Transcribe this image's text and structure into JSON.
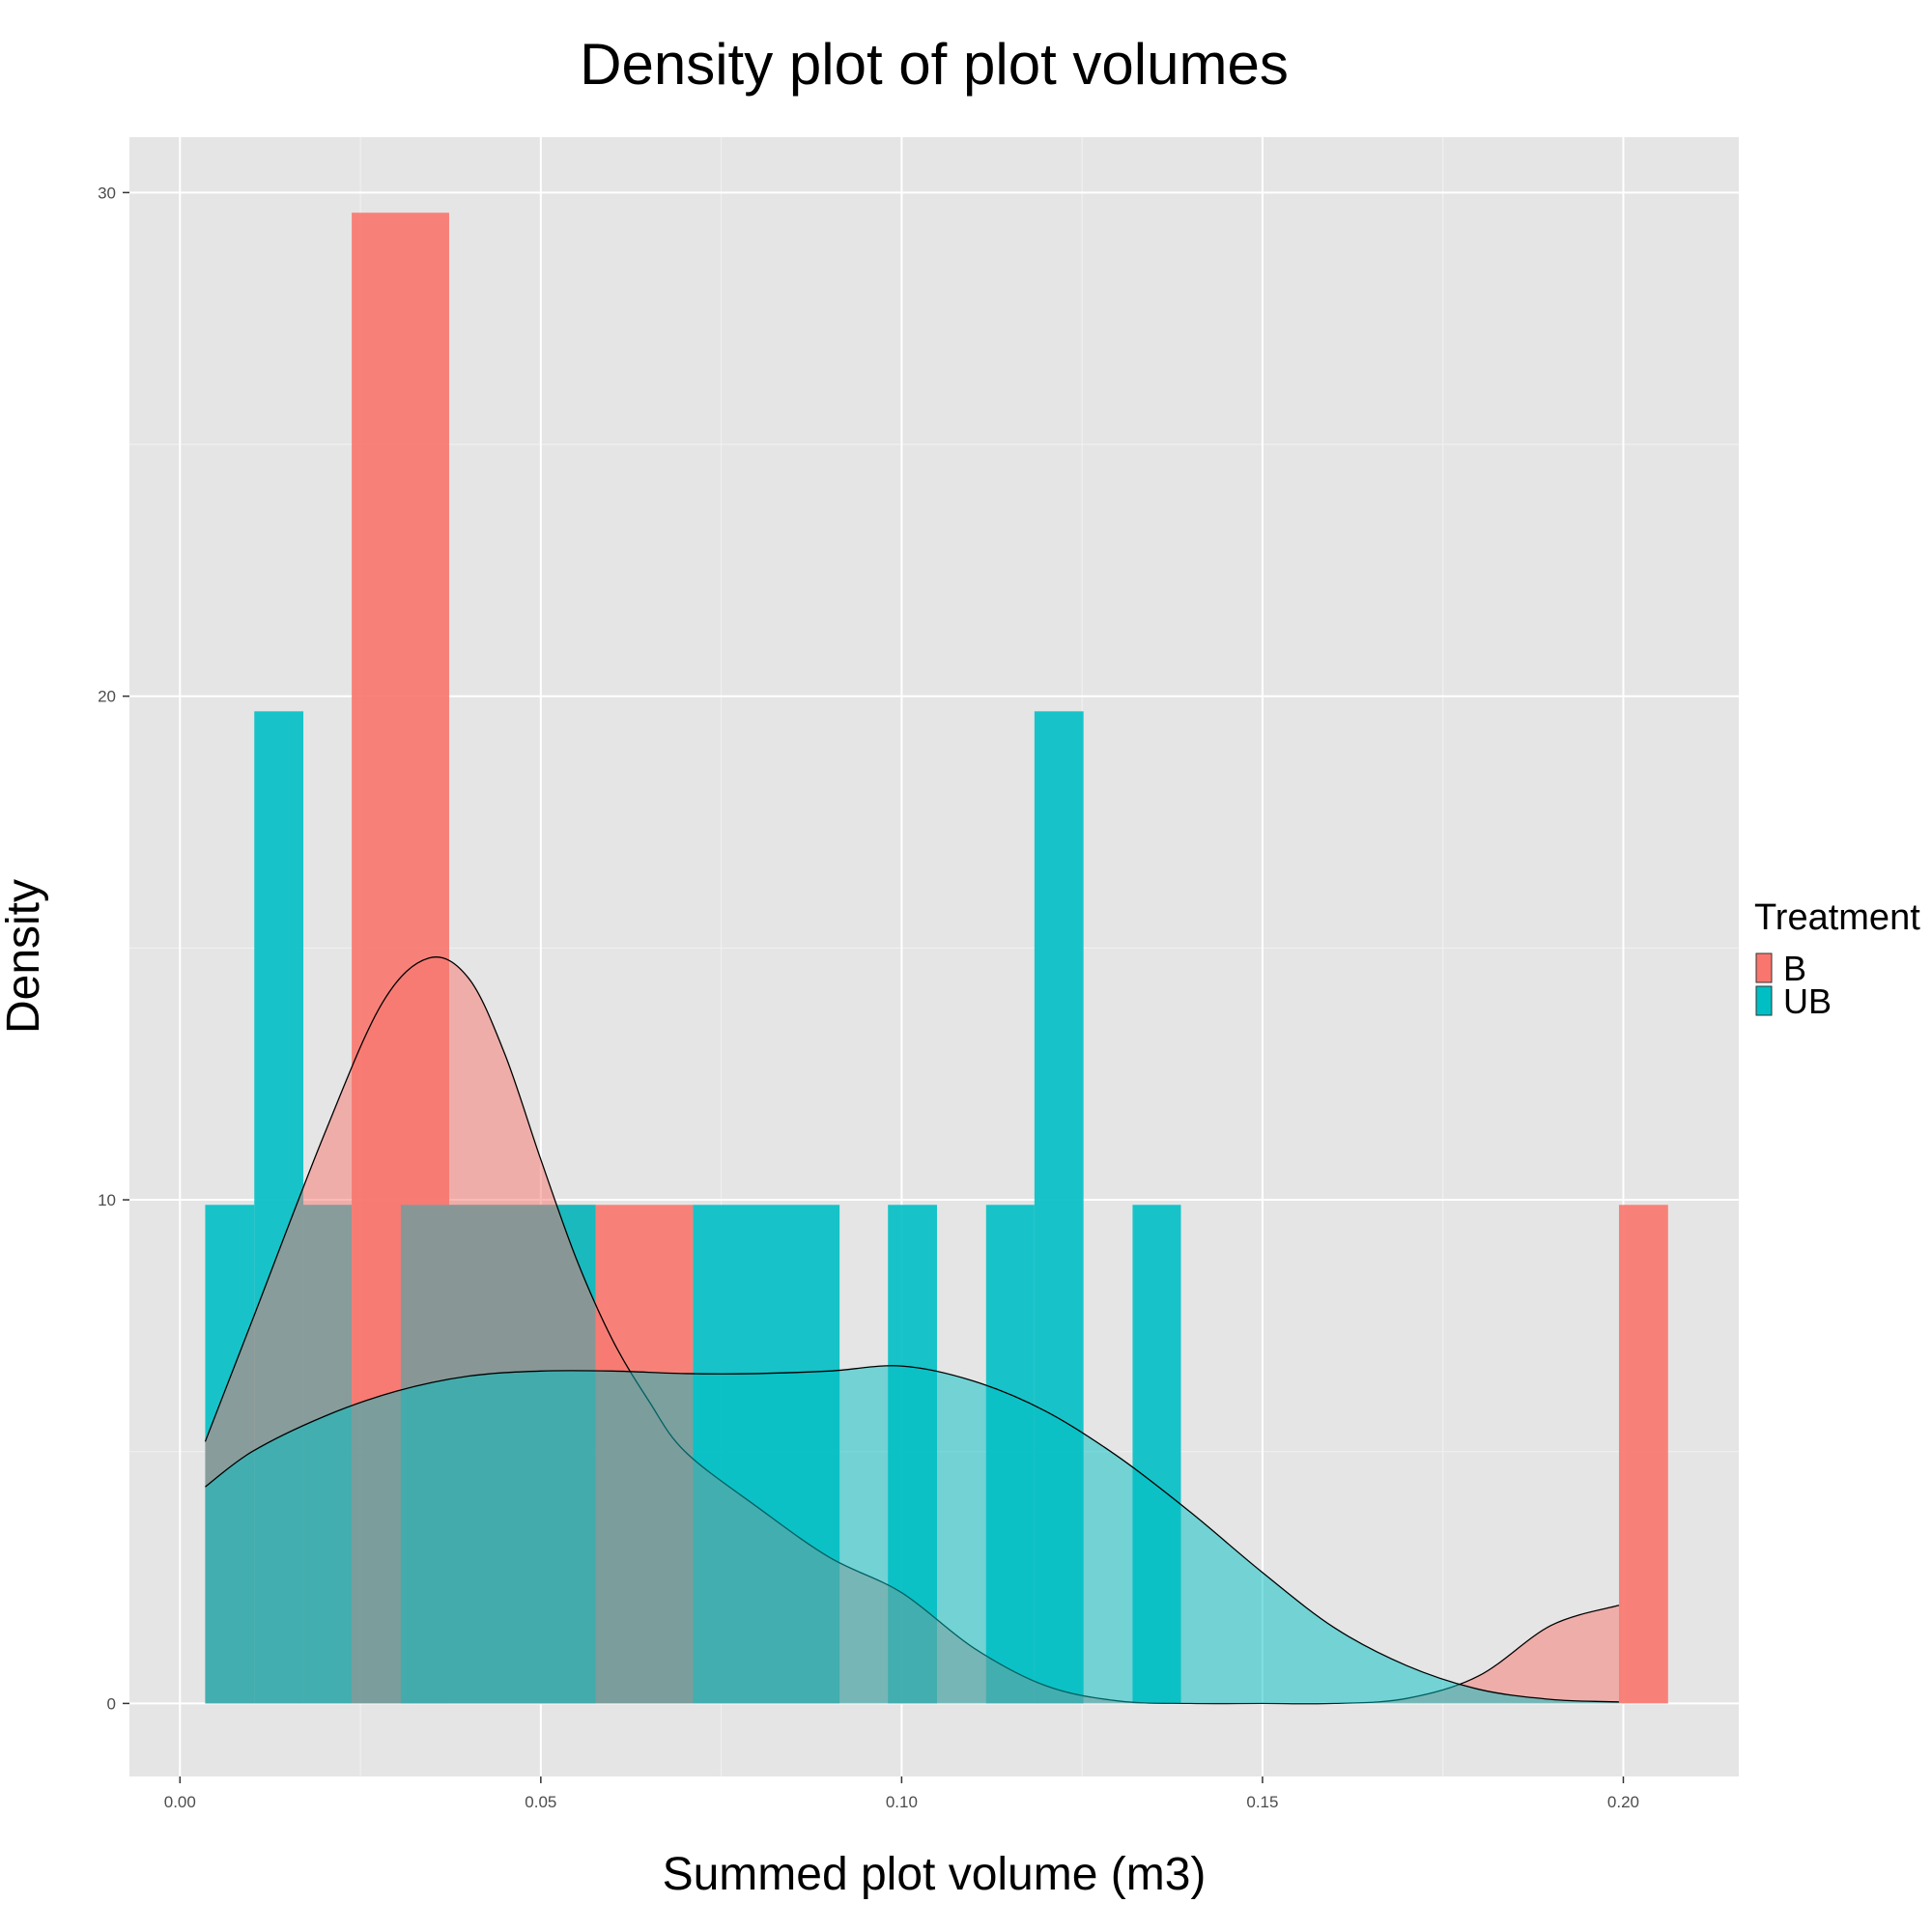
{
  "chart_data": {
    "type": "histogram",
    "title": "Density plot of plot volumes",
    "xlabel": "Summed plot volume (m3)",
    "ylabel": "Density",
    "xlim": [
      -0.007,
      0.216
    ],
    "ylim": [
      -1.45,
      31.1
    ],
    "x_ticks": [
      0,
      0.05,
      0.1,
      0.15,
      0.2
    ],
    "x_tick_labels": [
      "0.00",
      "0.05",
      "0.10",
      "0.15",
      "0.20"
    ],
    "y_ticks": [
      0,
      10,
      20,
      30
    ],
    "y_tick_labels": [
      "0",
      "10",
      "20",
      "30"
    ],
    "grid": true,
    "panel_background": "#e5e5e5",
    "legend": {
      "title": "Treatment",
      "position": "right",
      "entries": [
        {
          "label": "B",
          "color": "#f8766d"
        },
        {
          "label": "UB",
          "color": "#00bfc4"
        }
      ]
    },
    "series": [
      {
        "name": "B",
        "color": "#f8766d",
        "histogram": [
          {
            "x0": 0.0238,
            "x1": 0.0373,
            "y": 29.6
          },
          {
            "x0": 0.0306,
            "x1": 0.0576,
            "y": 9.9
          },
          {
            "x0": 0.0576,
            "x1": 0.0711,
            "y": 9.9
          },
          {
            "x0": 0.1994,
            "x1": 0.2062,
            "y": 9.9
          }
        ],
        "density": {
          "x": [
            0.0035,
            0.01,
            0.02,
            0.028,
            0.0345,
            0.04,
            0.045,
            0.05,
            0.055,
            0.06,
            0.065,
            0.07,
            0.08,
            0.09,
            0.1,
            0.11,
            0.12,
            0.13,
            0.14,
            0.15,
            0.16,
            0.17,
            0.18,
            0.19,
            0.1994
          ],
          "y": [
            5.2,
            7.6,
            11.3,
            13.9,
            14.8,
            14.4,
            12.9,
            10.8,
            8.8,
            7.2,
            6.0,
            5.0,
            3.9,
            2.9,
            2.2,
            1.1,
            0.35,
            0.05,
            0.0,
            0.0,
            0.0,
            0.1,
            0.55,
            1.55,
            1.95
          ]
        }
      },
      {
        "name": "UB",
        "color": "#00bfc4",
        "histogram": [
          {
            "x0": 0.0035,
            "x1": 0.0103,
            "y": 9.9
          },
          {
            "x0": 0.0103,
            "x1": 0.0171,
            "y": 19.7
          },
          {
            "x0": 0.0171,
            "x1": 0.0238,
            "y": 9.9
          },
          {
            "x0": 0.0306,
            "x1": 0.0576,
            "y": 9.9
          },
          {
            "x0": 0.0711,
            "x1": 0.0914,
            "y": 9.9
          },
          {
            "x0": 0.0981,
            "x1": 0.1049,
            "y": 9.9
          },
          {
            "x0": 0.1117,
            "x1": 0.1184,
            "y": 9.9
          },
          {
            "x0": 0.1184,
            "x1": 0.1252,
            "y": 19.7
          },
          {
            "x0": 0.132,
            "x1": 0.1387,
            "y": 9.9
          }
        ],
        "density": {
          "x": [
            0.0035,
            0.01,
            0.02,
            0.03,
            0.04,
            0.05,
            0.06,
            0.07,
            0.08,
            0.09,
            0.1,
            0.11,
            0.12,
            0.13,
            0.14,
            0.15,
            0.16,
            0.17,
            0.18,
            0.19,
            0.1994
          ],
          "y": [
            4.3,
            5.0,
            5.7,
            6.2,
            6.5,
            6.6,
            6.6,
            6.55,
            6.55,
            6.6,
            6.7,
            6.4,
            5.8,
            4.9,
            3.8,
            2.6,
            1.5,
            0.75,
            0.28,
            0.08,
            0.03
          ]
        }
      }
    ]
  }
}
